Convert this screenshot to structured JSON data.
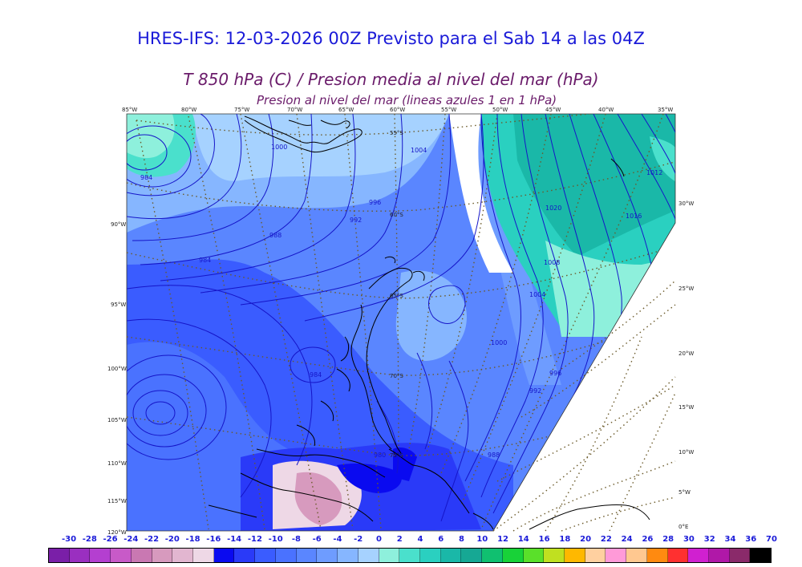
{
  "title": {
    "main": "HRES-IFS: 12-03-2026 00Z Previsto para el Sab 14 a las 04Z",
    "variable": "T 850 hPa (C) / Presion media al nivel del mar (hPa)",
    "subtitle": "Presion al nivel del mar (lineas azules 1 en 1 hPa)"
  },
  "colors": {
    "title_blue": "#1a1ad8",
    "title_purple": "#6a1b6a",
    "isobar": "#1515c8",
    "coast": "#000000",
    "graticule": "#6b5a2a"
  },
  "colorbar": {
    "labels": [
      "-30",
      "-28",
      "-26",
      "-24",
      "-22",
      "-20",
      "-18",
      "-16",
      "-14",
      "-12",
      "-10",
      "-8",
      "-6",
      "-4",
      "-2",
      "0",
      "2",
      "4",
      "6",
      "8",
      "10",
      "12",
      "14",
      "16",
      "18",
      "20",
      "22",
      "24",
      "26",
      "28",
      "30",
      "32",
      "34",
      "36",
      "70"
    ],
    "colors": [
      "#7a1fa8",
      "#9a2fc0",
      "#b43fd0",
      "#c85ac8",
      "#c978b2",
      "#d79abe",
      "#e2b6d0",
      "#eed8e6",
      "#0a0af0",
      "#2a3af8",
      "#3a5cff",
      "#4a72ff",
      "#5a86ff",
      "#6e9cff",
      "#86b6ff",
      "#a6d2ff",
      "#8ef0dc",
      "#4ae0cc",
      "#2ad0c0",
      "#1ab8a8",
      "#16a894",
      "#10c070",
      "#18d238",
      "#5ae02a",
      "#c0e020",
      "#ffb800",
      "#ffd0a0",
      "#ff9ad8",
      "#ffc890",
      "#ff8a10",
      "#ff3030",
      "#d020d0",
      "#b018a8",
      "#8a2a6a",
      "#000000"
    ]
  },
  "map": {
    "lon_labels_top": [
      "85°W",
      "80°W",
      "75°W",
      "70°W",
      "65°W",
      "60°W",
      "55°W",
      "50°W",
      "45°W",
      "40°W",
      "35°W"
    ],
    "lat_labels_left": [
      "90°W",
      "95°W",
      "100°W",
      "105°W",
      "110°W",
      "115°W",
      "120°W"
    ],
    "lat_labels_right": [
      "30°W",
      "25°W",
      "20°W",
      "15°W",
      "10°W",
      "5°W",
      "0°E"
    ],
    "inner_lat_labels": [
      "55°S",
      "60°S",
      "65°S",
      "70°S",
      "75°S"
    ],
    "isobar_labels": [
      "984",
      "1000",
      "1004",
      "996",
      "992",
      "988",
      "984",
      "1012",
      "1016",
      "1020",
      "1008",
      "1004",
      "1000",
      "996",
      "992",
      "988",
      "984",
      "980"
    ]
  }
}
